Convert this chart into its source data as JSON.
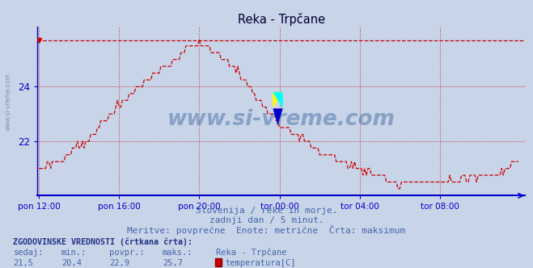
{
  "title": "Reka - Trpčane",
  "bg_color": "#c8d4e8",
  "plot_bg_color": "#c8d4e8",
  "line_color": "#cc0000",
  "axis_color": "#0000cc",
  "grid_color": "#cc0000",
  "text_color": "#4466aa",
  "title_color": "#000033",
  "ymin": 20.0,
  "ymax": 26.2,
  "yticks": [
    22,
    24
  ],
  "max_value": 25.7,
  "watermark": "www.si-vreme.com",
  "subtitle1": "Slovenija / reke in morje.",
  "subtitle2": "zadnji dan / 5 minut.",
  "subtitle3": "Meritve: povprečne  Enote: metrične  Črta: maksimum",
  "legend_label1": "ZGODOVINSKE VREDNOSTI (črtkana črta):",
  "legend_cols": [
    "sedaj:",
    "min.:",
    "povpr.:",
    "maks.:",
    "Reka - Trpčane"
  ],
  "legend_vals": [
    "21,5",
    "20,4",
    "22,9",
    "25,7",
    "temperatura[C]"
  ],
  "xtick_labels": [
    "pon 12:00",
    "pon 16:00",
    "pon 20:00",
    "tor 00:00",
    "tor 04:00",
    "tor 08:00"
  ],
  "keypoints_t": [
    0,
    1,
    2,
    3,
    4,
    5,
    6,
    7,
    7.5,
    8,
    8.5,
    9,
    9.5,
    10,
    11,
    12,
    13,
    14,
    15,
    16,
    17,
    18,
    19,
    20,
    21,
    22,
    23,
    23.5,
    24
  ],
  "keypoints_v": [
    21.0,
    21.3,
    21.8,
    22.5,
    23.3,
    24.0,
    24.6,
    25.1,
    25.4,
    25.5,
    25.4,
    25.2,
    24.9,
    24.5,
    23.5,
    22.7,
    22.2,
    21.7,
    21.3,
    21.0,
    20.7,
    20.4,
    20.5,
    20.5,
    20.6,
    20.7,
    20.8,
    21.2,
    21.3
  ]
}
